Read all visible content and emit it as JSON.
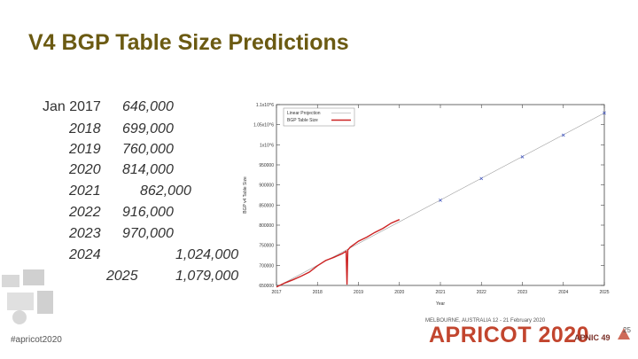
{
  "slide": {
    "title": "V4 BGP Table Size Predictions",
    "hashtag": "#apricot2020",
    "event_line": "MELBOURNE, AUSTRALIA  12 - 21 February 2020",
    "logo_text": "APRICOT 2020",
    "logo_sub": "APNIC 49",
    "page_number": "25"
  },
  "predictions": [
    {
      "year": "Jan 2017",
      "value": "646,000"
    },
    {
      "year": "2018",
      "value": "699,000"
    },
    {
      "year": "2019",
      "value": "760,000"
    },
    {
      "year": "2020",
      "value": "814,000"
    },
    {
      "year": "2021",
      "value": "862,000"
    },
    {
      "year": "2022",
      "value": "916,000"
    },
    {
      "year": "2023",
      "value": "970,000"
    },
    {
      "year": "2024",
      "value": "1,024,000"
    },
    {
      "year": "2025",
      "value": "1,079,000"
    }
  ],
  "chart_data": {
    "type": "line",
    "xlabel": "Year",
    "ylabel": "BGP v4 Table Size",
    "xlim": [
      2017,
      2025
    ],
    "ylim": [
      650000,
      1100000
    ],
    "x_ticks": [
      "2017",
      "2018",
      "2019",
      "2020",
      "2021",
      "2022",
      "2023",
      "2024",
      "2025"
    ],
    "y_ticks": [
      {
        "value": 650000,
        "label": "650000"
      },
      {
        "value": 700000,
        "label": "700000"
      },
      {
        "value": 750000,
        "label": "750000"
      },
      {
        "value": 800000,
        "label": "800000"
      },
      {
        "value": 850000,
        "label": "850000"
      },
      {
        "value": 900000,
        "label": "900000"
      },
      {
        "value": 950000,
        "label": "950000"
      },
      {
        "value": 1000000,
        "label": "1x10^6"
      },
      {
        "value": 1050000,
        "label": "1.05x10^6"
      },
      {
        "value": 1100000,
        "label": "1.1x10^6"
      }
    ],
    "legend": [
      "Linear Projection",
      "BGP Table Size"
    ],
    "legend_position": "top-left",
    "series": [
      {
        "name": "Linear Projection",
        "color": "#3a4fbf",
        "x": [
          2017,
          2025
        ],
        "y": [
          646000,
          1079000
        ],
        "markers_x": [
          2021,
          2022,
          2023,
          2024,
          2025
        ],
        "markers_y": [
          862000,
          916000,
          970000,
          1024000,
          1079000
        ]
      },
      {
        "name": "BGP Table Size",
        "color": "#cc2222",
        "x": [
          2017.0,
          2017.2,
          2017.4,
          2017.6,
          2017.8,
          2018.0,
          2018.2,
          2018.4,
          2018.6,
          2018.7,
          2018.72,
          2018.74,
          2018.8,
          2019.0,
          2019.2,
          2019.4,
          2019.6,
          2019.8,
          2020.0
        ],
        "y": [
          646000,
          656000,
          664000,
          673000,
          683000,
          699000,
          712000,
          720000,
          729000,
          735000,
          652000,
          738000,
          745000,
          760000,
          770000,
          782000,
          792000,
          805000,
          814000
        ]
      }
    ],
    "grid": false
  }
}
